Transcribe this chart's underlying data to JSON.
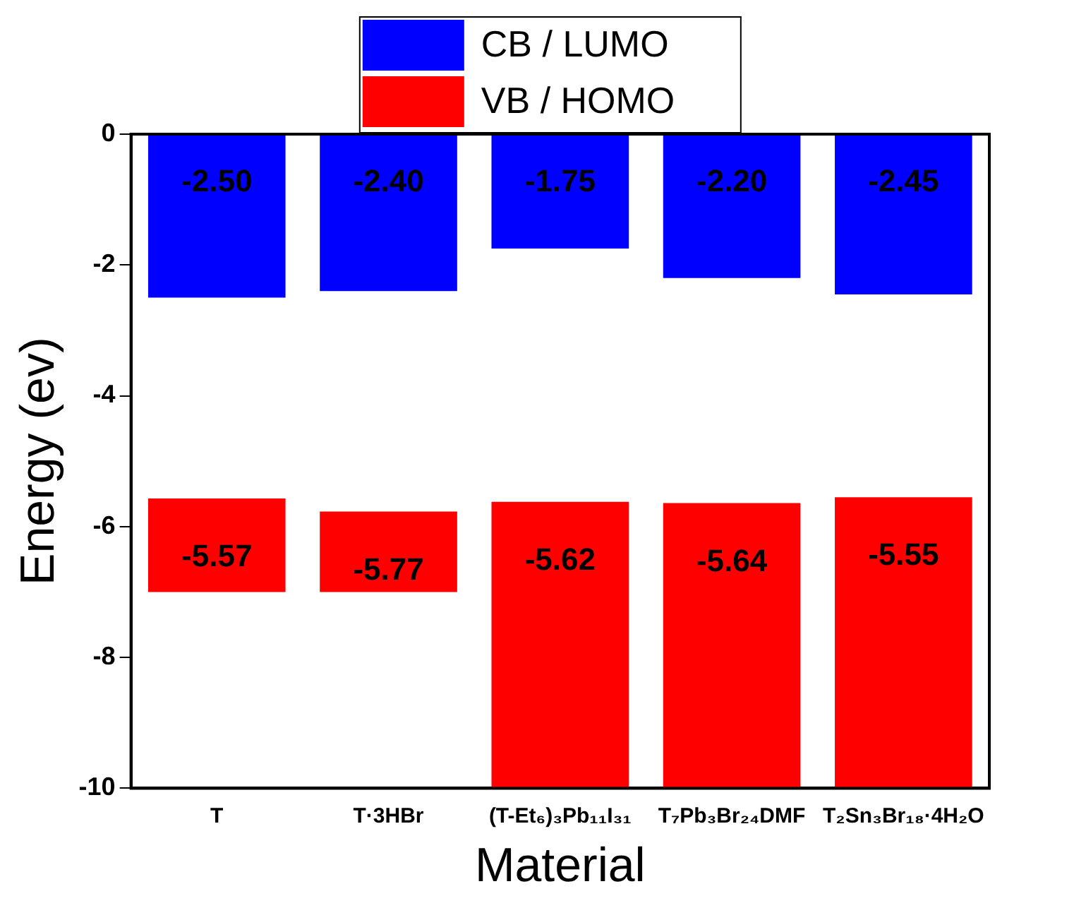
{
  "chart_data": {
    "type": "bar",
    "xlabel": "Material",
    "ylabel": "Energy (ev)",
    "categories": [
      "T",
      "T·3HBr",
      "(T-Et₆)₃Pb₁₁I₃₁",
      "T₇Pb₃Br₂₄DMF",
      "T₂Sn₃Br₁₈·4H₂O"
    ],
    "series": [
      {
        "name": "CB / LUMO",
        "color": "#0000ff",
        "base": [
          0,
          0,
          0,
          0,
          0
        ],
        "values": [
          -2.5,
          -2.4,
          -1.75,
          -2.2,
          -2.45
        ],
        "value_labels": [
          "-2.50",
          "-2.40",
          "-1.75",
          "-2.20",
          "-2.45"
        ]
      },
      {
        "name": "VB / HOMO",
        "color": "#ff0000",
        "base": [
          -7,
          -7,
          -10,
          -10,
          -10
        ],
        "values": [
          1.43,
          1.23,
          4.38,
          4.36,
          4.45
        ],
        "value_labels": [
          "-5.57",
          "-5.77",
          "-5.62",
          "-5.64",
          "-5.55"
        ]
      }
    ],
    "ylim": [
      -10,
      0
    ],
    "yticks": [
      -10,
      -8,
      -6,
      -4,
      -2,
      0
    ],
    "grid": false,
    "legend": "top"
  }
}
